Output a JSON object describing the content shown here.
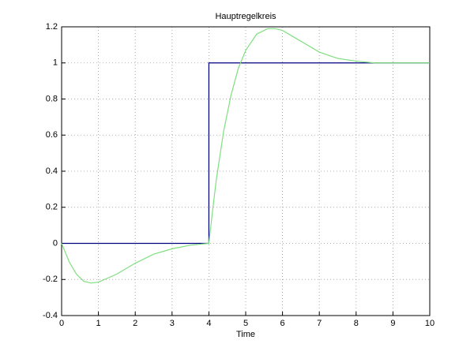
{
  "chart_data": {
    "type": "line",
    "title": "Hauptregelkreis",
    "x_label": "Time",
    "xlim": [
      0,
      10
    ],
    "ylim": [
      -0.4,
      1.2
    ],
    "xticks": [
      0,
      1,
      2,
      3,
      4,
      5,
      6,
      7,
      8,
      9,
      10
    ],
    "yticks": [
      -0.4,
      -0.2,
      0,
      0.2,
      0.4,
      0.6,
      0.8,
      1,
      1.2
    ],
    "grid": true,
    "series": [
      {
        "color": "#00007f",
        "x": [
          0,
          4,
          4,
          10
        ],
        "values": [
          0,
          0,
          1,
          1
        ]
      },
      {
        "color": "#7fdf7f",
        "x": [
          0,
          0.2,
          0.4,
          0.6,
          0.8,
          1.0,
          1.5,
          2,
          2.5,
          3,
          3.5,
          4,
          4.1,
          4.2,
          4.4,
          4.6,
          4.8,
          5,
          5.3,
          5.6,
          5.8,
          6,
          6.5,
          7,
          7.5,
          8,
          8.5,
          9,
          10
        ],
        "values": [
          0,
          -0.1,
          -0.17,
          -0.21,
          -0.22,
          -0.215,
          -0.17,
          -0.11,
          -0.06,
          -0.03,
          -0.01,
          0,
          0.18,
          0.35,
          0.62,
          0.82,
          0.97,
          1.07,
          1.16,
          1.19,
          1.19,
          1.18,
          1.12,
          1.06,
          1.025,
          1.01,
          1.0,
          1.0,
          1.0
        ]
      }
    ]
  }
}
